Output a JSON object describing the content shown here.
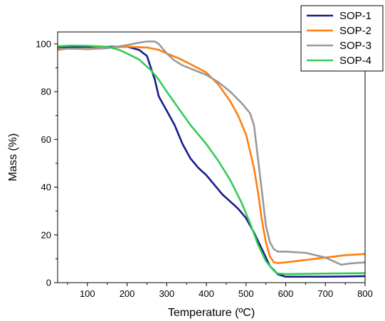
{
  "chart_data": {
    "type": "line",
    "title": "",
    "xlabel": "Temperature (ºC)",
    "ylabel": "Mass (%)",
    "xlim": [
      25,
      800
    ],
    "ylim": [
      0,
      105
    ],
    "xticks": [
      100,
      200,
      300,
      400,
      500,
      600,
      700,
      800
    ],
    "yticks": [
      0,
      20,
      40,
      60,
      80,
      100
    ],
    "grid": false,
    "legend_position": "top-right",
    "series": [
      {
        "name": "SOP-1",
        "color": "#1a1a8c",
        "x": [
          25,
          60,
          100,
          150,
          200,
          230,
          250,
          260,
          270,
          280,
          290,
          300,
          320,
          340,
          360,
          380,
          400,
          420,
          440,
          460,
          480,
          500,
          520,
          540,
          560,
          580,
          600,
          650,
          700,
          750,
          800
        ],
        "y": [
          98.5,
          98.7,
          98.8,
          98.8,
          98.8,
          97.5,
          95,
          90,
          85,
          78,
          75,
          72,
          66,
          58,
          52,
          48,
          45,
          41,
          37,
          34,
          31,
          27,
          21,
          14,
          7,
          3.5,
          2.5,
          2.5,
          2.5,
          2.6,
          2.7
        ]
      },
      {
        "name": "SOP-2",
        "color": "#ff7f0e",
        "x": [
          25,
          50,
          100,
          150,
          200,
          250,
          280,
          300,
          330,
          360,
          400,
          430,
          460,
          480,
          500,
          520,
          530,
          540,
          550,
          560,
          570,
          580,
          600,
          650,
          700,
          750,
          800
        ],
        "y": [
          97.5,
          98,
          98,
          98.5,
          98.8,
          98.5,
          97.5,
          96,
          94,
          91.5,
          88,
          83,
          76,
          70,
          62,
          48,
          38,
          26,
          17,
          11,
          8.5,
          8.2,
          8.5,
          9.5,
          10.5,
          11.5,
          12
        ]
      },
      {
        "name": "SOP-3",
        "color": "#999999",
        "x": [
          25,
          60,
          100,
          150,
          200,
          230,
          250,
          270,
          280,
          300,
          320,
          340,
          370,
          400,
          430,
          460,
          490,
          510,
          520,
          530,
          540,
          550,
          560,
          570,
          580,
          600,
          650,
          700,
          740,
          760,
          800
        ],
        "y": [
          98,
          98,
          97.8,
          98.2,
          99.5,
          100.5,
          101,
          101,
          100,
          96,
          93,
          91,
          89,
          87,
          84,
          80,
          75,
          71,
          66,
          52,
          38,
          24,
          17,
          14,
          13,
          13,
          12.5,
          10.5,
          7.5,
          8,
          8.5
        ]
      },
      {
        "name": "SOP-4",
        "color": "#33cc55",
        "x": [
          25,
          60,
          100,
          150,
          180,
          200,
          230,
          260,
          280,
          300,
          330,
          360,
          400,
          430,
          460,
          490,
          510,
          530,
          550,
          570,
          580,
          600,
          650,
          700,
          750,
          800
        ],
        "y": [
          99,
          99.3,
          99.2,
          98.8,
          97.5,
          96,
          93.5,
          89,
          85,
          80,
          73,
          66,
          58,
          51,
          43,
          33,
          25,
          16,
          9,
          5,
          3.8,
          3.6,
          3.7,
          3.8,
          3.9,
          4
        ]
      }
    ]
  }
}
